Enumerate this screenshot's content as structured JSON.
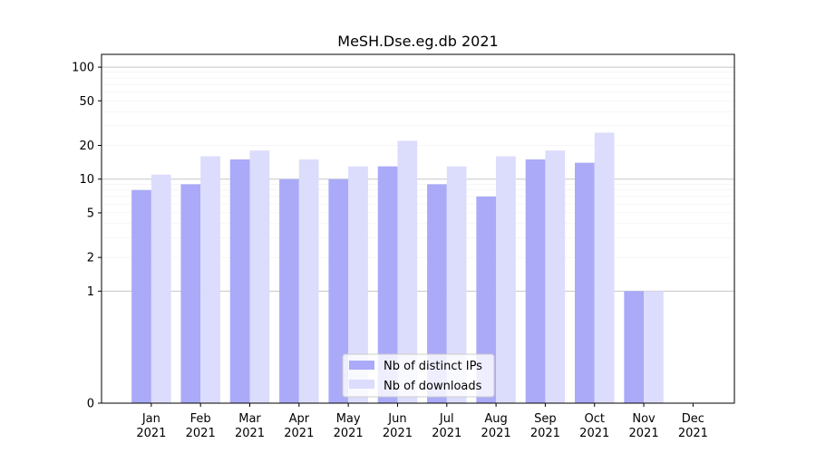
{
  "chart_data": {
    "type": "bar",
    "title": "MeSH.Dse.eg.db 2021",
    "xlabel": "",
    "ylabel": "",
    "yscale": "symlog",
    "ylim": [
      0,
      130
    ],
    "y_ticks": [
      0,
      1,
      2,
      5,
      10,
      20,
      50,
      100
    ],
    "y_tick_labels": [
      "0",
      "1",
      "2",
      "5",
      "10",
      "20",
      "50",
      "100"
    ],
    "categories": [
      {
        "month": "Jan",
        "year": "2021"
      },
      {
        "month": "Feb",
        "year": "2021"
      },
      {
        "month": "Mar",
        "year": "2021"
      },
      {
        "month": "Apr",
        "year": "2021"
      },
      {
        "month": "May",
        "year": "2021"
      },
      {
        "month": "Jun",
        "year": "2021"
      },
      {
        "month": "Jul",
        "year": "2021"
      },
      {
        "month": "Aug",
        "year": "2021"
      },
      {
        "month": "Sep",
        "year": "2021"
      },
      {
        "month": "Oct",
        "year": "2021"
      },
      {
        "month": "Nov",
        "year": "2021"
      },
      {
        "month": "Dec",
        "year": "2021"
      }
    ],
    "series": [
      {
        "name": "Nb of distinct IPs",
        "color": "#aaaaf8",
        "values": [
          8,
          9,
          15,
          10,
          10,
          13,
          9,
          7,
          15,
          14,
          1,
          0
        ]
      },
      {
        "name": "Nb of downloads",
        "color": "#dcdcfc",
        "values": [
          11,
          16,
          18,
          15,
          13,
          22,
          13,
          16,
          18,
          26,
          1,
          0
        ]
      }
    ],
    "grid": true,
    "legend_position": "bottom-center"
  }
}
